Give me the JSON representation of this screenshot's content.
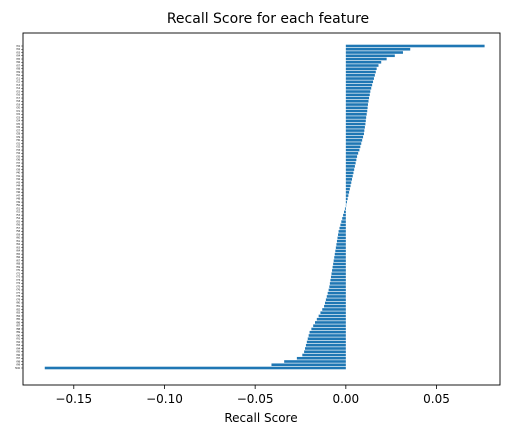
{
  "chart_data": {
    "type": "bar",
    "orientation": "horizontal",
    "title": "Recall Score for each feature",
    "xlabel": "Recall Score",
    "ylabel": "",
    "xlim": [
      -0.178,
      0.085
    ],
    "xticks": [
      -0.15,
      -0.1,
      -0.05,
      0.0,
      0.05
    ],
    "xtick_labels": [
      "−0.15",
      "−0.10",
      "−0.05",
      "0.00",
      "0.05"
    ],
    "bar_color": "#1f77b4",
    "grid": false,
    "categories": [
      "f01",
      "f02",
      "f03",
      "f04",
      "f05",
      "f06",
      "f07",
      "f08",
      "f09",
      "f10",
      "f11",
      "f12",
      "f13",
      "f14",
      "f15",
      "f16",
      "f17",
      "f18",
      "f19",
      "f20",
      "f21",
      "f22",
      "f23",
      "f24",
      "f25",
      "f26",
      "f27",
      "f28",
      "f29",
      "f30",
      "f31",
      "f32",
      "f33",
      "f34",
      "f35",
      "f36",
      "f37",
      "f38",
      "f39",
      "f40",
      "f41",
      "f42",
      "f43",
      "f44",
      "f45",
      "f46",
      "f47",
      "f48",
      "f49",
      "f50",
      "f51",
      "f52",
      "f53",
      "f54",
      "f55",
      "f56",
      "f57",
      "f58",
      "f59",
      "f60",
      "f61",
      "f62",
      "f63",
      "f64",
      "f65",
      "f66",
      "f67",
      "f68",
      "f69",
      "f70",
      "f71",
      "f72",
      "f73",
      "f74",
      "f75",
      "f76",
      "f77",
      "f78",
      "f79",
      "f80",
      "f81",
      "f82",
      "f83",
      "f84",
      "f85",
      "f86",
      "f87",
      "f88",
      "f89",
      "f90",
      "f91",
      "f92",
      "f93",
      "f94",
      "f95",
      "f96",
      "f97",
      "f98",
      "f99",
      "f100"
    ],
    "values": [
      0.0765,
      0.0355,
      0.0315,
      0.027,
      0.0225,
      0.0195,
      0.018,
      0.017,
      0.0165,
      0.016,
      0.0155,
      0.015,
      0.0145,
      0.014,
      0.0135,
      0.0132,
      0.0128,
      0.0125,
      0.0122,
      0.012,
      0.0118,
      0.0115,
      0.0112,
      0.011,
      0.0108,
      0.0105,
      0.0102,
      0.01,
      0.0095,
      0.009,
      0.0085,
      0.008,
      0.0075,
      0.0068,
      0.0062,
      0.0058,
      0.0054,
      0.005,
      0.0046,
      0.0042,
      0.0038,
      0.0034,
      0.003,
      0.0026,
      0.0022,
      0.0018,
      0.0014,
      0.001,
      0.0006,
      0.0002,
      -0.0005,
      -0.001,
      -0.0015,
      -0.002,
      -0.0025,
      -0.003,
      -0.0035,
      -0.004,
      -0.0043,
      -0.0046,
      -0.0049,
      -0.0052,
      -0.0055,
      -0.0058,
      -0.0061,
      -0.0064,
      -0.0067,
      -0.007,
      -0.0073,
      -0.0076,
      -0.0079,
      -0.0082,
      -0.0085,
      -0.0088,
      -0.0091,
      -0.0095,
      -0.01,
      -0.0105,
      -0.011,
      -0.0115,
      -0.012,
      -0.013,
      -0.014,
      -0.015,
      -0.016,
      -0.017,
      -0.018,
      -0.019,
      -0.02,
      -0.0205,
      -0.021,
      -0.0215,
      -0.022,
      -0.0225,
      -0.023,
      -0.024,
      -0.027,
      -0.034,
      -0.041,
      -0.166
    ]
  }
}
